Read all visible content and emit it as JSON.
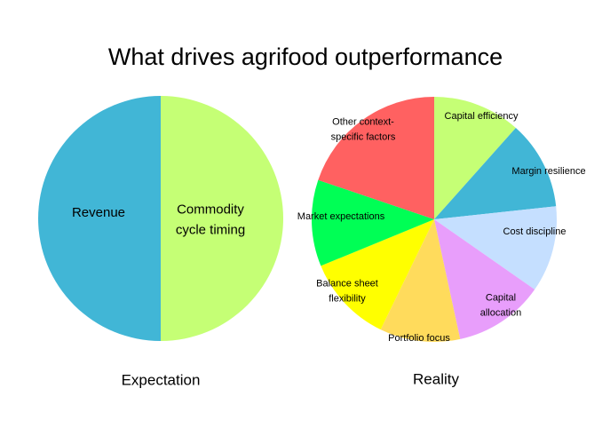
{
  "title": "What drives agrifood outperformance",
  "chart_data": [
    {
      "type": "pie",
      "subtitle": "Expectation",
      "labels": [
        "Commodity cycle timing",
        "Revenue"
      ],
      "values": [
        50,
        50
      ],
      "colors": [
        "#c5ff75",
        "#41b6d6"
      ]
    },
    {
      "type": "pie",
      "subtitle": "Reality",
      "labels": [
        "Capital efficiency",
        "Margin resilience",
        "Cost discipline",
        "Capital allocation",
        "Portfolio focus",
        "Balance sheet flexibility",
        "Market expectations",
        "Other context-specific factors"
      ],
      "values": [
        11.6,
        11.7,
        11.4,
        11.9,
        10.6,
        11.6,
        11.4,
        19.8
      ],
      "colors": [
        "#c5ff75",
        "#41b6d6",
        "#c5dfff",
        "#e89efb",
        "#ffdb5c",
        "#ffff00",
        "#00ff55",
        "#ff6161"
      ]
    }
  ]
}
